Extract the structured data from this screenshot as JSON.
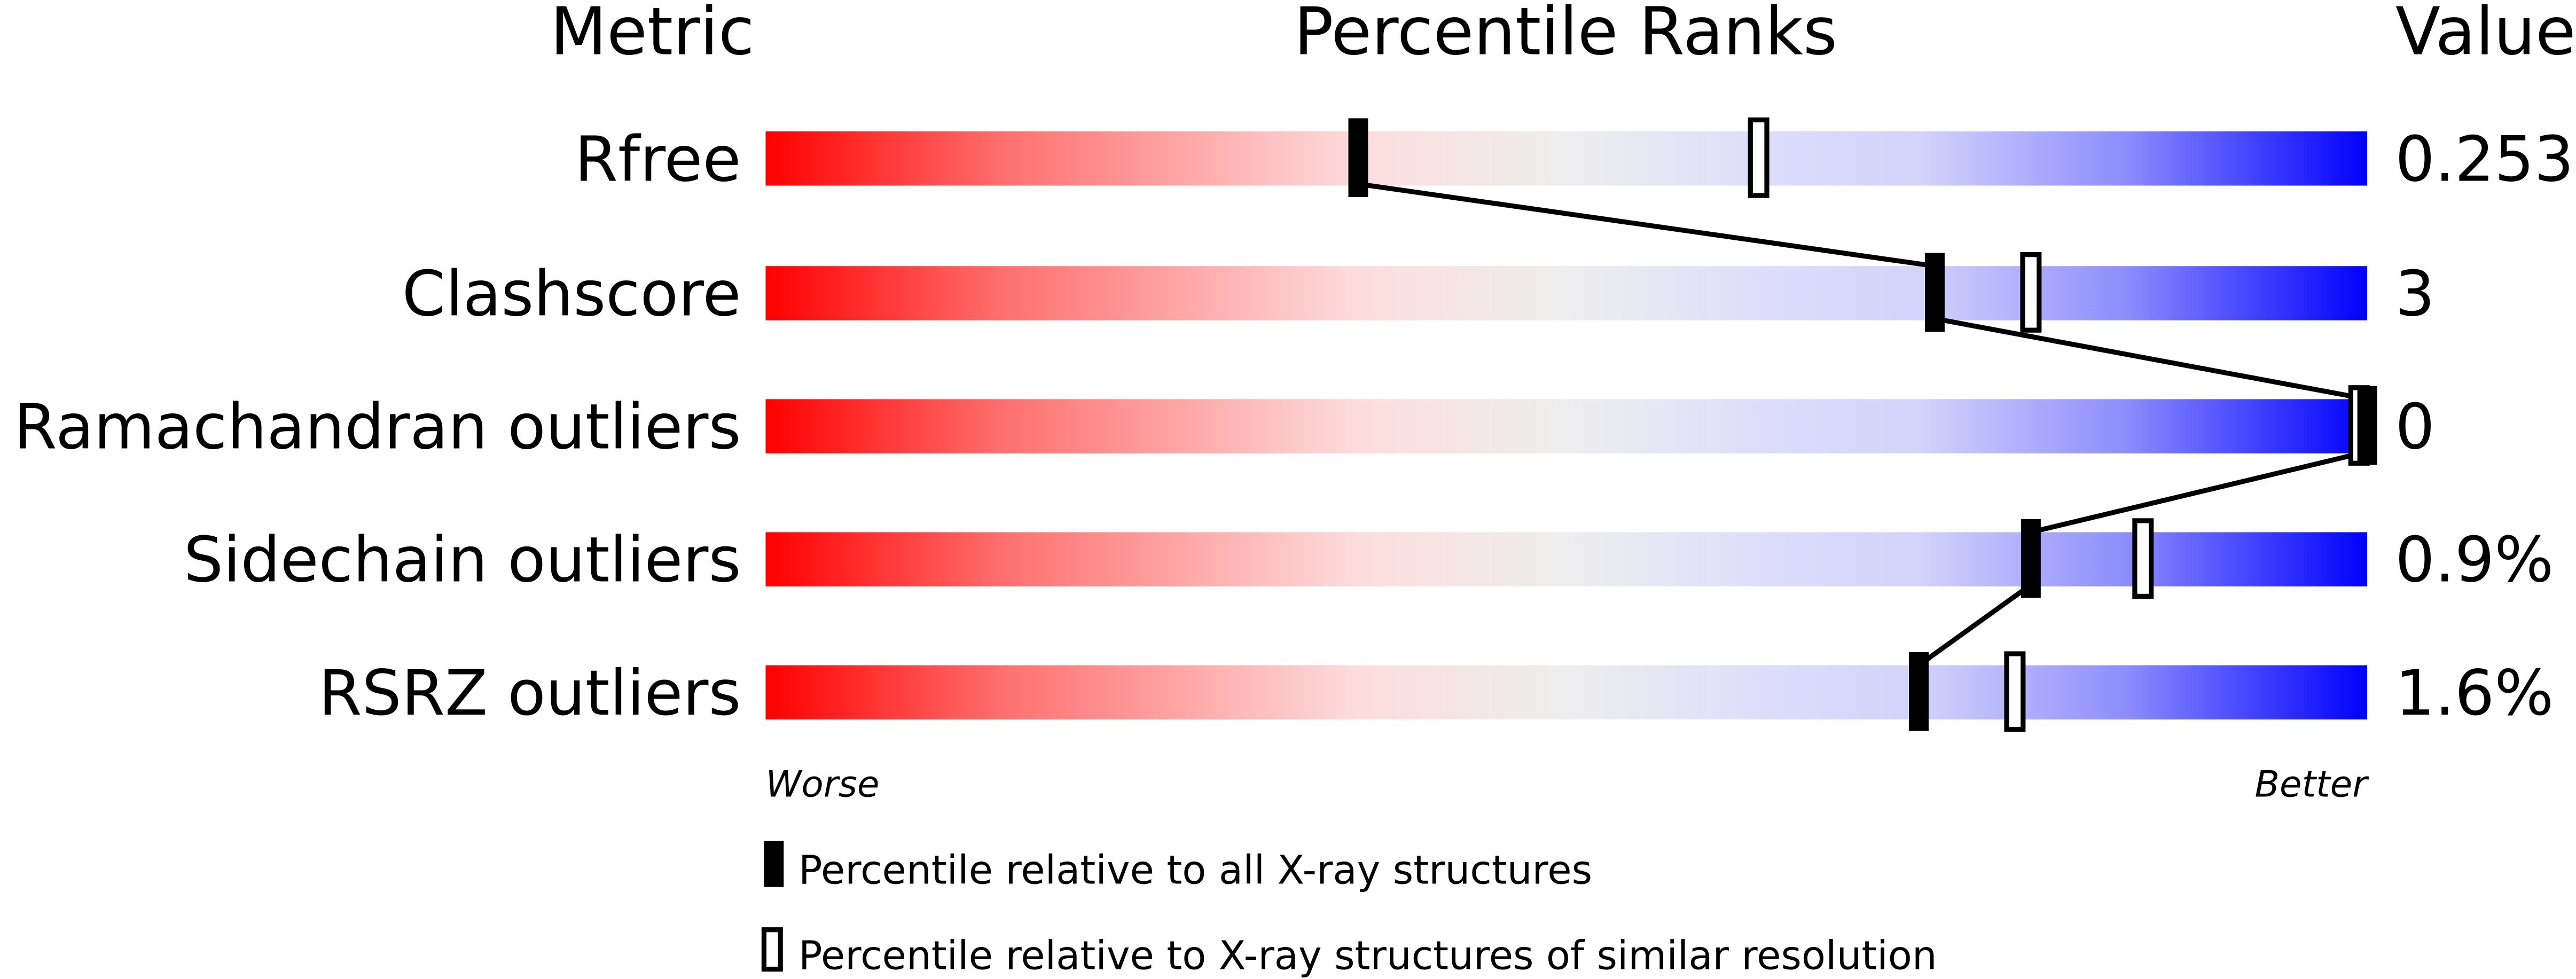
{
  "chart_data": {
    "type": "percentile-slider",
    "headers": {
      "metric": "Metric",
      "ranks": "Percentile Ranks",
      "value": "Value"
    },
    "scale": {
      "min": 0,
      "max": 100,
      "left_label": "Worse",
      "right_label": "Better"
    },
    "colors": {
      "worse": "#ff0000",
      "middle": "#eeeeee",
      "better": "#0000ff",
      "marker": "#000000"
    },
    "rows": [
      {
        "metric": "Rfree",
        "value": "0.253",
        "percentile_all": 37,
        "percentile_similar": 62
      },
      {
        "metric": "Clashscore",
        "value": "3",
        "percentile_all": 73,
        "percentile_similar": 79
      },
      {
        "metric": "Ramachandran outliers",
        "value": "0",
        "percentile_all": 100,
        "percentile_similar": 100
      },
      {
        "metric": "Sidechain outliers",
        "value": "0.9%",
        "percentile_all": 79,
        "percentile_similar": 86
      },
      {
        "metric": "RSRZ outliers",
        "value": "1.6%",
        "percentile_all": 72,
        "percentile_similar": 78
      }
    ],
    "legend": [
      {
        "marker": "filled",
        "label": "Percentile relative to all X-ray structures"
      },
      {
        "marker": "open",
        "label": "Percentile relative to X-ray structures of similar resolution"
      }
    ]
  }
}
